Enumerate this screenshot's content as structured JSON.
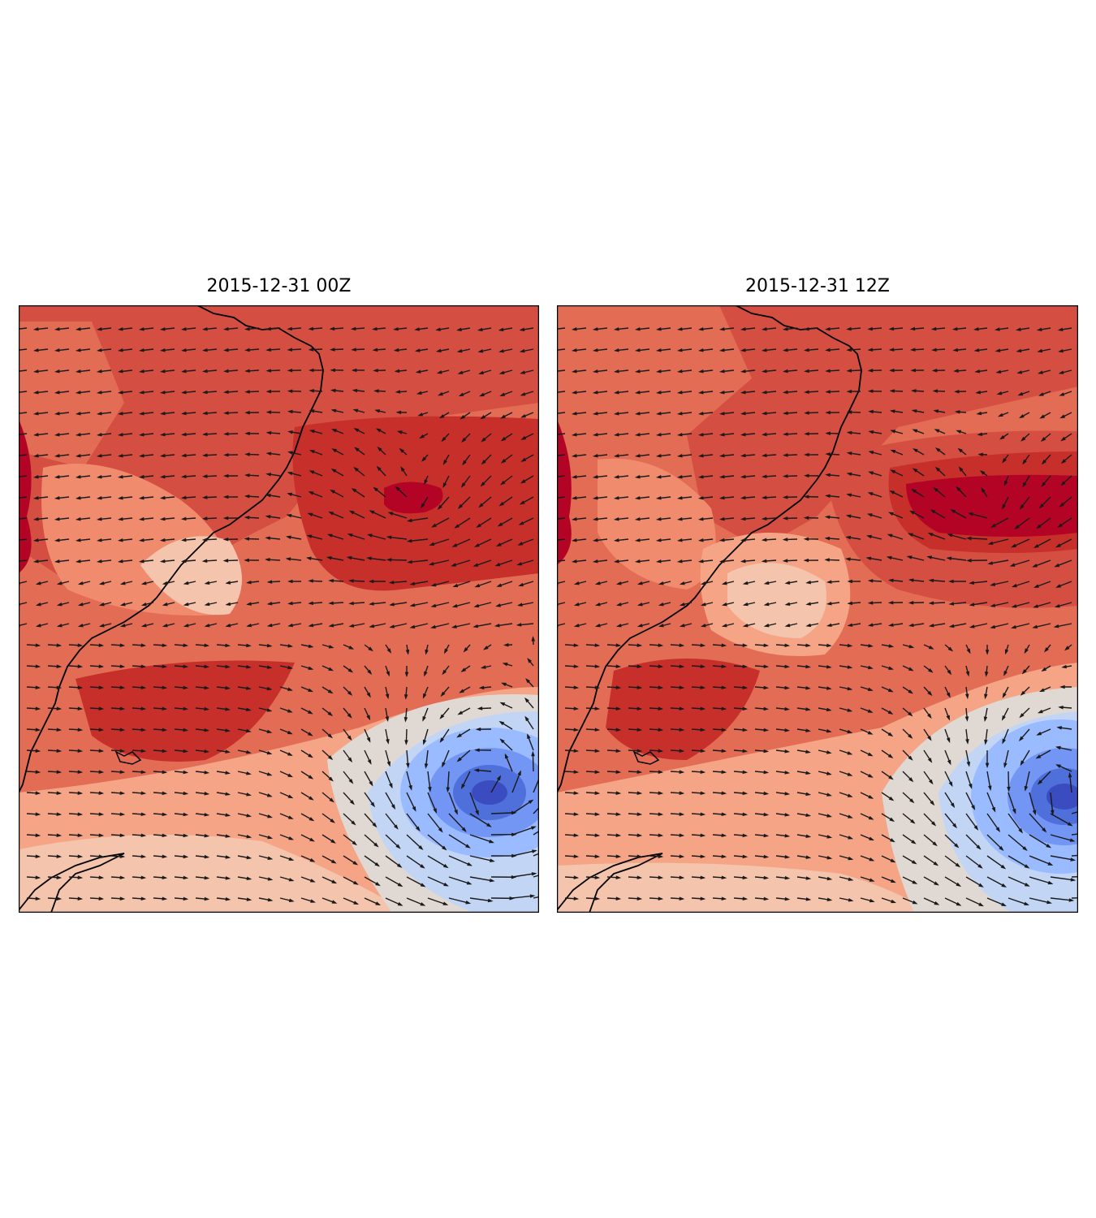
{
  "panels": [
    {
      "title": "2015-12-31 00Z",
      "field": "shaded scalar field with wind vectors",
      "high_core": "dark red cell centered over ocean east of coast",
      "low_core": "blue cyclonic vortex in lower-right",
      "vortex": "cyclonic"
    },
    {
      "title": "2015-12-31 12Z",
      "field": "shaded scalar field with wind vectors",
      "high_core": "dark red elongated cell east of coast",
      "low_core": "blue cyclonic vortex at right edge",
      "vortex": "cyclonic"
    }
  ],
  "colors": {
    "darkest_red": "#b40426",
    "dark_red": "#c72f2b",
    "red": "#d44e41",
    "medium_red": "#e36c55",
    "light_red": "#f08b6e",
    "salmon": "#f5a586",
    "pale_salmon": "#f4c4ad",
    "neutral": "#e0d9d3",
    "pale_blue": "#c3d5f4",
    "light_blue": "#9abbff",
    "blue": "#7396f5",
    "dark_blue": "#4f6fdb",
    "darkest_blue": "#3b4cc0",
    "coastline": "#000000",
    "arrow": "#1a1a1a"
  }
}
